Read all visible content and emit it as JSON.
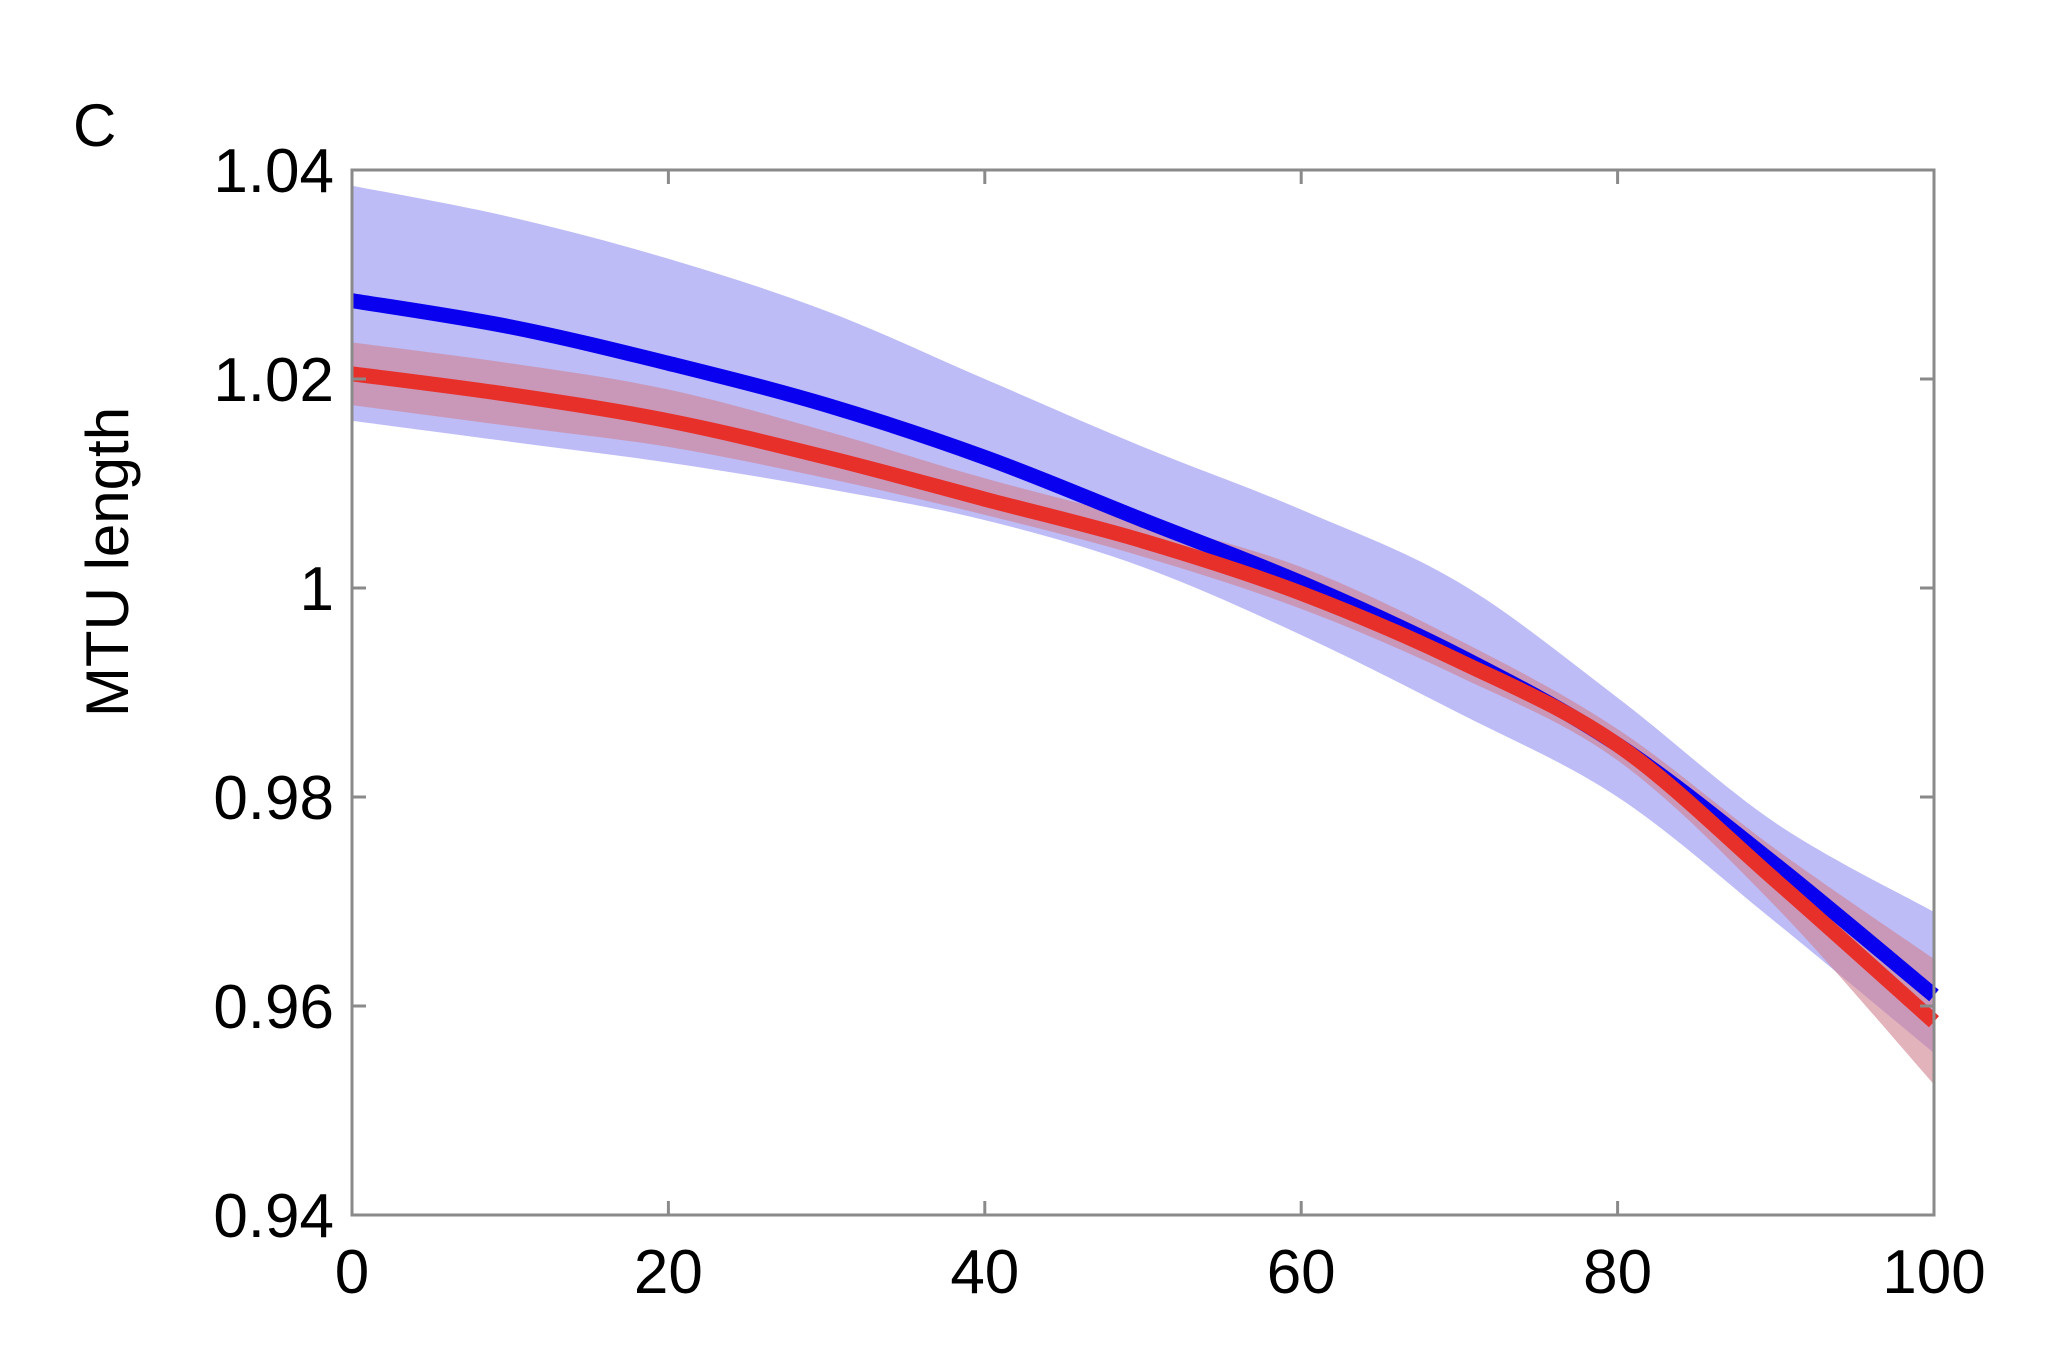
{
  "panel_label": "C",
  "chart_data": {
    "type": "line",
    "title": "",
    "xlabel": "",
    "ylabel": "MTU length",
    "xlim": [
      0,
      100
    ],
    "ylim": [
      0.94,
      1.04
    ],
    "xticks": [
      0,
      20,
      40,
      60,
      80,
      100
    ],
    "yticks": [
      0.94,
      0.96,
      0.98,
      1.0,
      1.02,
      1.04
    ],
    "xtick_labels": [
      "0",
      "20",
      "40",
      "60",
      "80",
      "100"
    ],
    "ytick_labels": [
      "0.94",
      "0.96",
      "0.98",
      "1",
      "1.02",
      "1.04"
    ],
    "grid": false,
    "legend": "none",
    "series": [
      {
        "color": "#0a00f0",
        "band_color": "#b9b8f7",
        "x": [
          0,
          10,
          20,
          30,
          40,
          50,
          60,
          70,
          80,
          90,
          100
        ],
        "values": [
          1.0275,
          1.025,
          1.0215,
          1.0175,
          1.0125,
          1.0065,
          1.0005,
          0.9935,
          0.985,
          0.9735,
          0.961
        ],
        "lower": [
          1.016,
          1.014,
          1.012,
          1.0095,
          1.0065,
          1.002,
          0.9955,
          0.988,
          0.98,
          0.968,
          0.9555
        ],
        "upper": [
          1.0385,
          1.0355,
          1.0315,
          1.0265,
          1.02,
          1.0135,
          1.0075,
          1.0005,
          0.9895,
          0.9775,
          0.969
        ]
      },
      {
        "color": "#e8302a",
        "band_color": "#d08090",
        "x": [
          0,
          10,
          20,
          30,
          40,
          50,
          60,
          70,
          80,
          90,
          100
        ],
        "values": [
          1.0205,
          1.0185,
          1.016,
          1.0125,
          1.0085,
          1.0045,
          0.9995,
          0.993,
          0.985,
          0.972,
          0.9585
        ],
        "lower": [
          1.0175,
          1.0155,
          1.0135,
          1.0105,
          1.007,
          1.003,
          0.998,
          0.9915,
          0.9835,
          0.9695,
          0.9525
        ],
        "upper": [
          1.0235,
          1.0215,
          1.019,
          1.015,
          1.0105,
          1.0065,
          1.002,
          0.995,
          0.9865,
          0.975,
          0.9645
        ]
      }
    ]
  }
}
